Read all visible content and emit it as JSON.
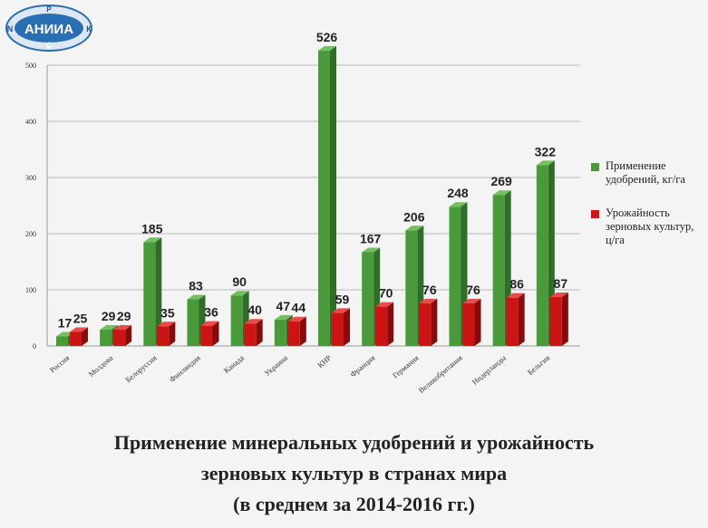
{
  "logo": {
    "text": "АНИИА",
    "top": "Р",
    "left": "N",
    "right": "К",
    "bottom": "С"
  },
  "colors": {
    "green": "#4a9a3c",
    "green_dark": "#2f6e26",
    "green_light": "#72c05e",
    "red": "#cc1414",
    "red_dark": "#8a0a0a",
    "red_light": "#ea4a4a"
  },
  "caption": {
    "line1": "Применение минеральных удобрений и урожайность",
    "line2": "зерновых культур в странах мира",
    "line3": "(в среднем за 2014-2016 гг.)"
  },
  "chart_data": {
    "type": "bar",
    "title": "",
    "xlabel": "",
    "ylabel": "",
    "ylim": [
      0,
      500
    ],
    "yticks": [
      "0",
      "100",
      "200",
      "300",
      "400",
      "500"
    ],
    "grid": true,
    "legend_position": "right",
    "categories": [
      "Россия",
      "Молдова",
      "Белоруссия",
      "Финляндия",
      "Канада",
      "Украина",
      "КНР",
      "Франция",
      "Германия",
      "Великобритания",
      "Нидерланды",
      "Бельгия"
    ],
    "series": [
      {
        "name": "Применение удобрений, кг/га",
        "color": "#4a9a3c",
        "values": [
          17,
          29,
          185,
          83,
          90,
          47,
          526,
          167,
          206,
          248,
          269,
          322
        ]
      },
      {
        "name": "Урожайность зерновых культур, ц/га",
        "color": "#cc1414",
        "values": [
          25,
          29,
          35,
          36,
          40,
          44,
          59,
          70,
          76,
          76,
          86,
          87
        ]
      }
    ]
  }
}
